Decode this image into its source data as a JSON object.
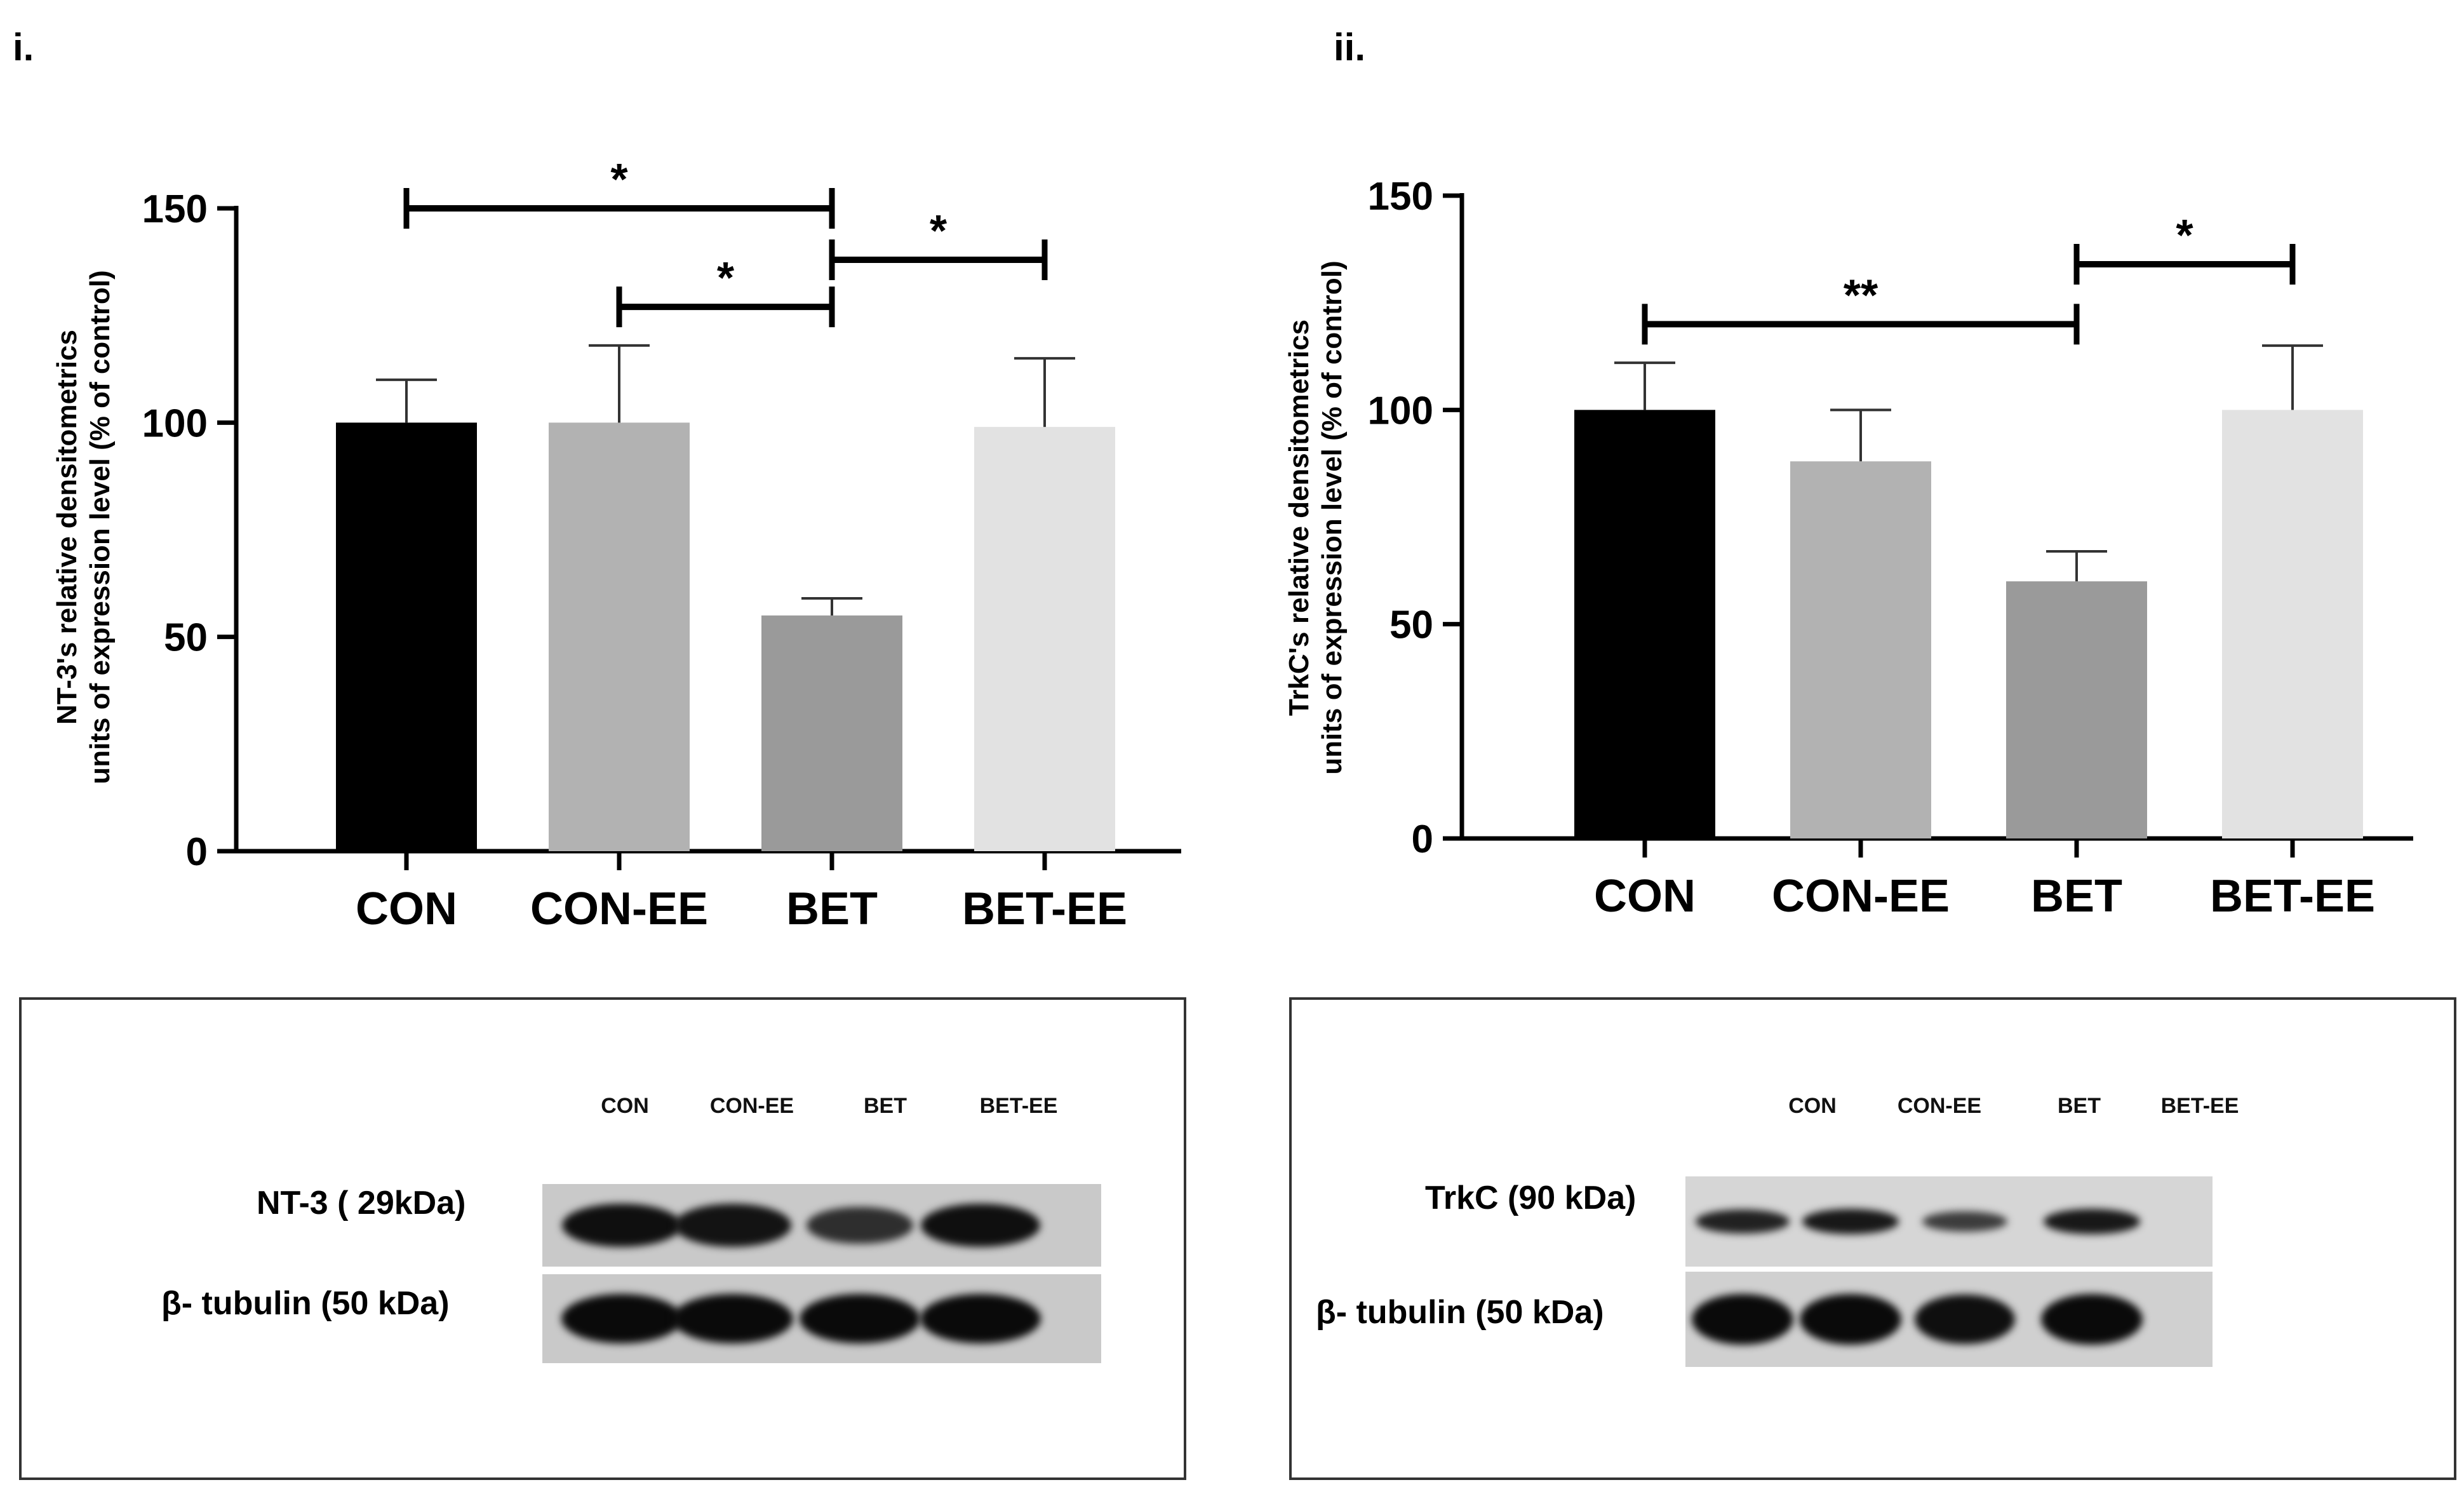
{
  "panels": [
    {
      "label": "i."
    },
    {
      "label": "ii."
    }
  ],
  "chart_data": [
    {
      "type": "bar",
      "title": "",
      "xlabel": "",
      "ylabel": "NT-3's relative densitometrics units of expression level (% of control)",
      "ylabel_lines": [
        "NT-3's relative densitometrics",
        "units of expression level (% of control)"
      ],
      "categories": [
        "CON",
        "CON-EE",
        "BET",
        "BET-EE"
      ],
      "values": [
        100,
        100,
        55,
        99
      ],
      "errors": [
        10,
        18,
        4,
        16
      ],
      "colors": [
        "#000000",
        "#b2b2b2",
        "#9a9a9a",
        "#e2e2e2"
      ],
      "ylim": [
        0,
        150
      ],
      "yticks": [
        0,
        50,
        100,
        150
      ],
      "significance": [
        {
          "from": 0,
          "to": 2,
          "label": "*",
          "y": 150
        },
        {
          "from": 1,
          "to": 2,
          "label": "*",
          "y": 127
        },
        {
          "from": 2,
          "to": 3,
          "label": "*",
          "y": 138
        }
      ]
    },
    {
      "type": "bar",
      "title": "",
      "xlabel": "",
      "ylabel": "TrkC's relative densitometrics units of expression level (% of control)",
      "ylabel_lines": [
        "TrkC's relative densitometrics",
        "units of expression level (% of control)"
      ],
      "categories": [
        "CON",
        "CON-EE",
        "BET",
        "BET-EE"
      ],
      "values": [
        100,
        88,
        60,
        100
      ],
      "errors": [
        11,
        12,
        7,
        15
      ],
      "colors": [
        "#000000",
        "#b2b2b2",
        "#9a9a9a",
        "#e2e2e2"
      ],
      "ylim": [
        0,
        150
      ],
      "yticks": [
        0,
        50,
        100,
        150
      ],
      "significance": [
        {
          "from": 0,
          "to": 2,
          "label": "**",
          "y": 120
        },
        {
          "from": 2,
          "to": 3,
          "label": "*",
          "y": 134
        }
      ]
    }
  ],
  "blots": [
    {
      "lanes": [
        "CON",
        "CON-EE",
        "BET",
        "BET-EE"
      ],
      "rows": [
        {
          "label": "NT-3  ( 29kDa)",
          "band_intensity": [
            0.95,
            0.9,
            0.6,
            0.95
          ]
        },
        {
          "label": "β- tubulin  (50 kDa)",
          "band_intensity": [
            1,
            1,
            1,
            1
          ]
        }
      ]
    },
    {
      "lanes": [
        "CON",
        "CON-EE",
        "BET",
        "BET-EE"
      ],
      "rows": [
        {
          "label": "TrkC  (90 kDa)",
          "band_intensity": [
            0.75,
            0.85,
            0.45,
            0.85
          ]
        },
        {
          "label": "β- tubulin  (50 kDa)",
          "band_intensity": [
            1,
            1,
            0.95,
            1
          ]
        }
      ]
    }
  ]
}
